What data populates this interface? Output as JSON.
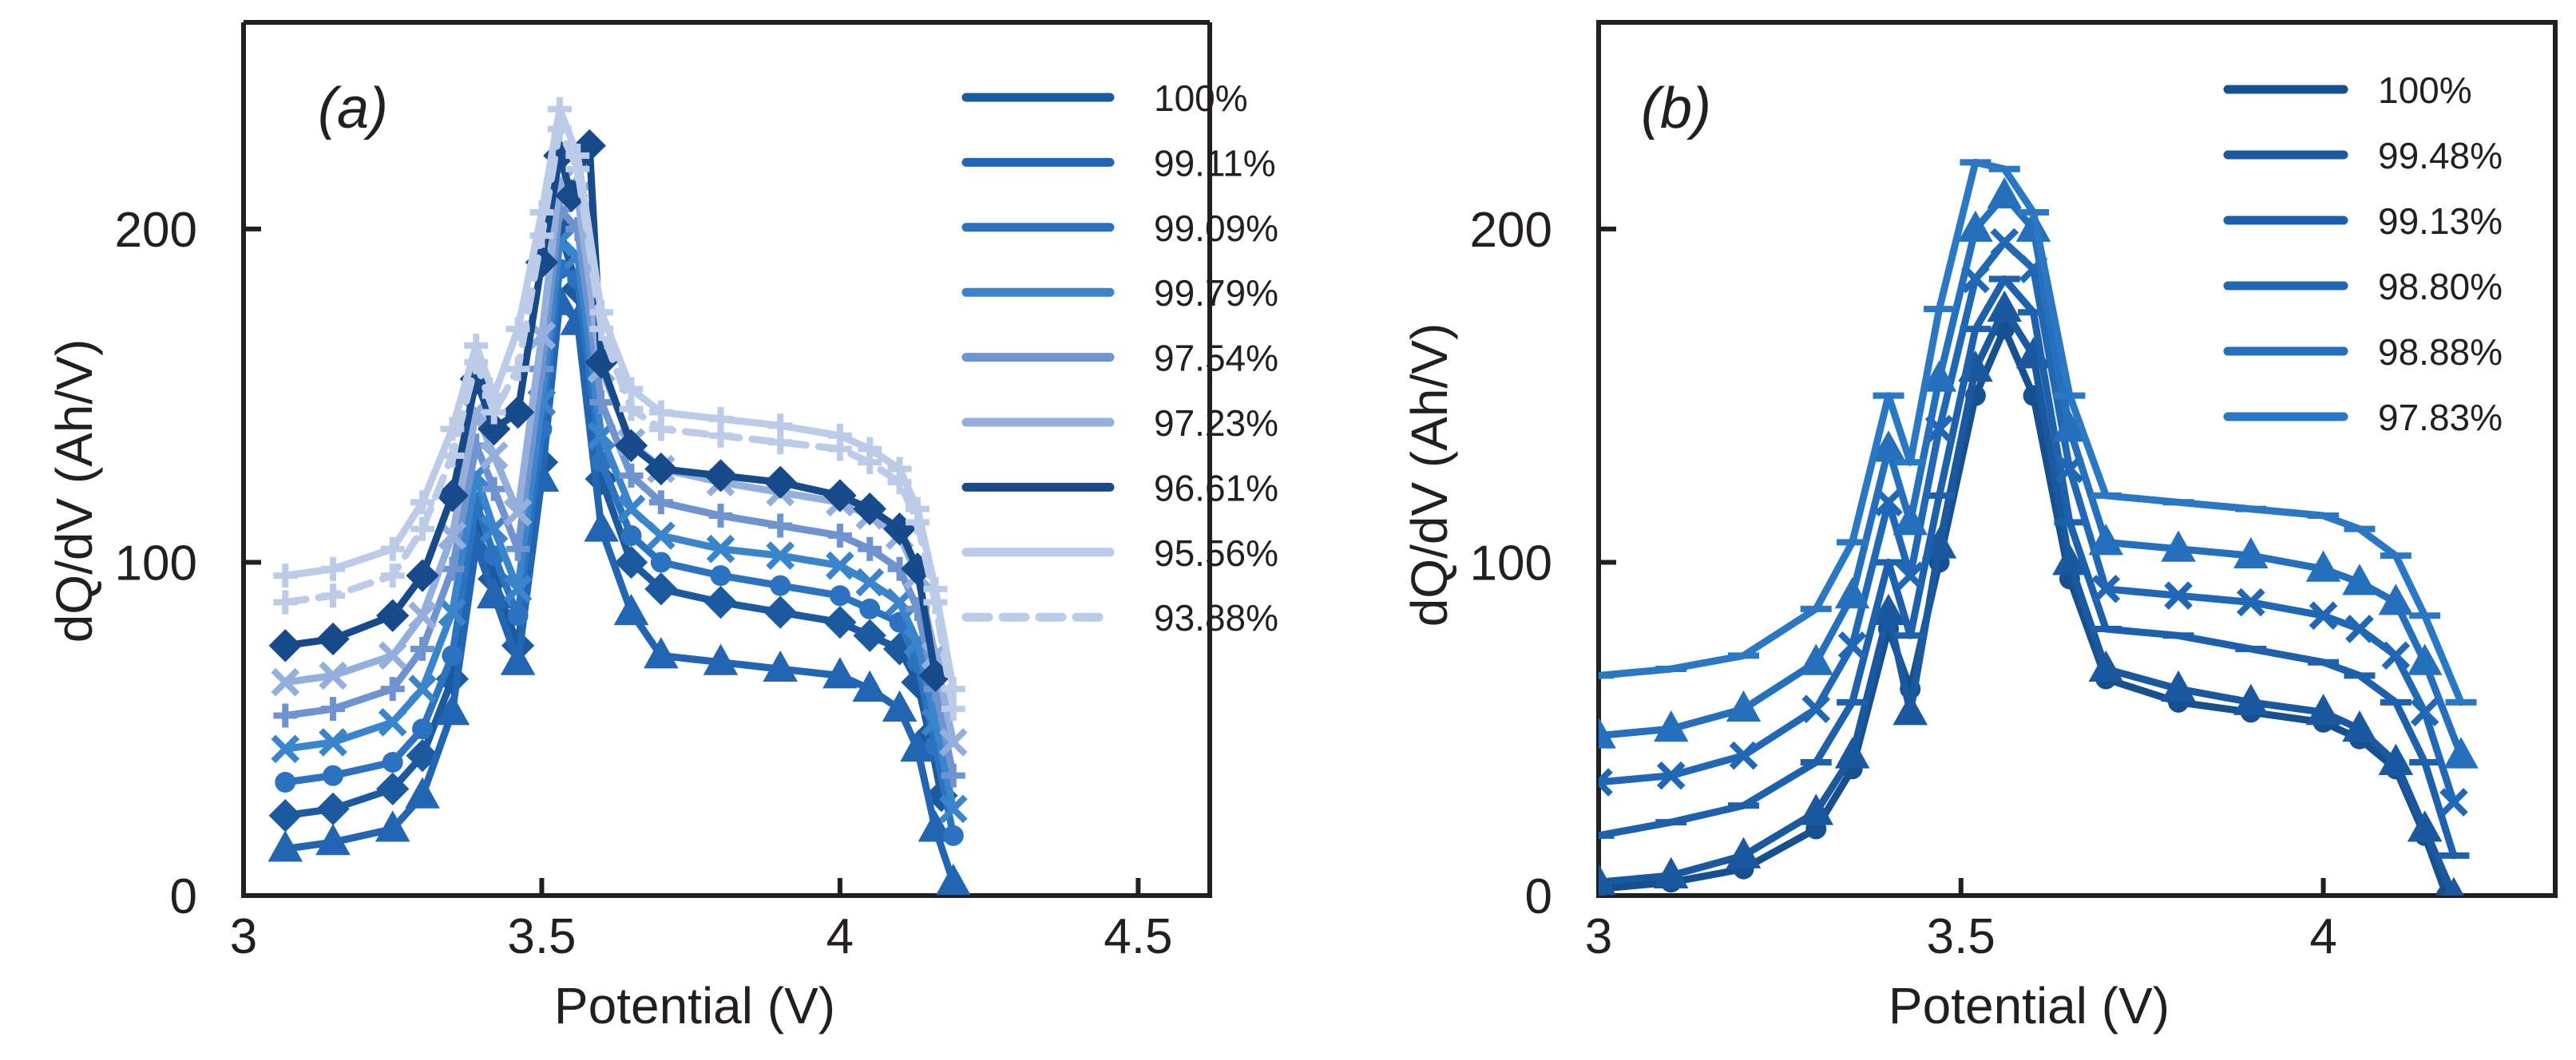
{
  "chart_data": [
    {
      "type": "line",
      "panel_label": "(a)",
      "xlabel": "Potential  (V)",
      "ylabel": "dQ/dV (Ah/V)",
      "xlim": [
        3.0,
        4.62
      ],
      "ylim": [
        0,
        262
      ],
      "xticks": [
        3,
        3.5,
        4,
        4.5
      ],
      "xtick_labels": [
        "3",
        "3.5",
        "4",
        "4.5"
      ],
      "yticks": [
        0,
        100,
        200
      ],
      "ytick_labels": [
        "0",
        "100",
        "200"
      ],
      "legend_position": "top-right",
      "series": [
        {
          "name": "100%",
          "color": "#1c5aa0",
          "dash": false,
          "marker": "diamond",
          "x": [
            3.07,
            3.15,
            3.25,
            3.3,
            3.35,
            3.39,
            3.42,
            3.46,
            3.5,
            3.53,
            3.56,
            3.6,
            3.65,
            3.7,
            3.8,
            3.9,
            4.0,
            4.05,
            4.1,
            4.13,
            4.15,
            4.17
          ],
          "y": [
            24,
            26,
            32,
            42,
            65,
            110,
            95,
            75,
            130,
            200,
            182,
            125,
            100,
            92,
            88,
            85,
            82,
            78,
            74,
            64,
            48,
            30
          ]
        },
        {
          "name": "99.11%",
          "color": "#2266b3",
          "dash": false,
          "marker": "triangle",
          "x": [
            3.07,
            3.15,
            3.25,
            3.3,
            3.35,
            3.39,
            3.42,
            3.46,
            3.5,
            3.53,
            3.56,
            3.6,
            3.65,
            3.7,
            3.8,
            3.9,
            4.0,
            4.05,
            4.1,
            4.13,
            4.16,
            4.19
          ],
          "y": [
            14,
            16,
            20,
            30,
            55,
            105,
            90,
            70,
            125,
            178,
            172,
            110,
            85,
            72,
            70,
            68,
            66,
            62,
            56,
            44,
            20,
            4
          ]
        },
        {
          "name": "99.09%",
          "color": "#2b73c0",
          "dash": false,
          "marker": "circle",
          "x": [
            3.07,
            3.15,
            3.25,
            3.3,
            3.35,
            3.39,
            3.42,
            3.46,
            3.5,
            3.53,
            3.56,
            3.6,
            3.65,
            3.7,
            3.8,
            3.9,
            4.0,
            4.05,
            4.1,
            4.13,
            4.16,
            4.19
          ],
          "y": [
            34,
            36,
            40,
            50,
            72,
            118,
            102,
            84,
            140,
            188,
            185,
            130,
            108,
            100,
            96,
            93,
            90,
            86,
            82,
            70,
            45,
            18
          ]
        },
        {
          "name": "99.79%",
          "color": "#3a84cc",
          "dash": false,
          "marker": "x",
          "x": [
            3.07,
            3.15,
            3.25,
            3.3,
            3.35,
            3.39,
            3.42,
            3.46,
            3.5,
            3.53,
            3.56,
            3.6,
            3.65,
            3.7,
            3.8,
            3.9,
            4.0,
            4.05,
            4.1,
            4.13,
            4.16,
            4.19
          ],
          "y": [
            44,
            46,
            52,
            62,
            85,
            126,
            110,
            92,
            148,
            196,
            192,
            138,
            116,
            108,
            104,
            102,
            99,
            94,
            88,
            76,
            52,
            26
          ]
        },
        {
          "name": "97.54%",
          "color": "#6e93cf",
          "dash": false,
          "marker": "plus",
          "x": [
            3.07,
            3.15,
            3.25,
            3.3,
            3.35,
            3.39,
            3.42,
            3.46,
            3.5,
            3.53,
            3.56,
            3.6,
            3.65,
            3.7,
            3.8,
            3.9,
            4.0,
            4.05,
            4.1,
            4.13,
            4.16,
            4.19
          ],
          "y": [
            54,
            56,
            62,
            74,
            98,
            135,
            122,
            104,
            158,
            206,
            200,
            148,
            126,
            118,
            114,
            111,
            108,
            104,
            98,
            86,
            62,
            36
          ]
        },
        {
          "name": "97.23%",
          "color": "#94afdc",
          "dash": false,
          "marker": "x",
          "x": [
            3.07,
            3.15,
            3.25,
            3.3,
            3.35,
            3.39,
            3.42,
            3.46,
            3.5,
            3.53,
            3.56,
            3.6,
            3.65,
            3.7,
            3.8,
            3.9,
            4.0,
            4.05,
            4.1,
            4.13,
            4.16,
            4.19
          ],
          "y": [
            64,
            66,
            72,
            84,
            108,
            145,
            132,
            115,
            168,
            214,
            210,
            158,
            136,
            128,
            124,
            121,
            118,
            114,
            108,
            96,
            72,
            46
          ]
        },
        {
          "name": "96.61%",
          "color": "#164a8a",
          "dash": false,
          "marker": "diamond",
          "x": [
            3.07,
            3.15,
            3.25,
            3.3,
            3.35,
            3.39,
            3.42,
            3.46,
            3.5,
            3.53,
            3.55,
            3.58,
            3.6,
            3.65,
            3.7,
            3.8,
            3.9,
            4.0,
            4.05,
            4.1,
            4.13,
            4.16
          ],
          "y": [
            75,
            77,
            84,
            96,
            120,
            155,
            140,
            145,
            190,
            222,
            210,
            225,
            160,
            135,
            128,
            126,
            124,
            120,
            116,
            110,
            98,
            66
          ]
        },
        {
          "name": "95.56%",
          "color": "#bccce8",
          "dash": false,
          "marker": "plus",
          "x": [
            3.07,
            3.15,
            3.25,
            3.3,
            3.35,
            3.39,
            3.42,
            3.46,
            3.5,
            3.53,
            3.56,
            3.6,
            3.65,
            3.7,
            3.8,
            3.9,
            4.0,
            4.05,
            4.1,
            4.13,
            4.16,
            4.19
          ],
          "y": [
            96,
            98,
            104,
            118,
            140,
            165,
            150,
            170,
            205,
            236,
            222,
            175,
            152,
            145,
            143,
            141,
            138,
            134,
            128,
            116,
            92,
            62
          ]
        },
        {
          "name": "93.88%",
          "color": "#bccce8",
          "dash": true,
          "marker": "plus",
          "x": [
            3.07,
            3.15,
            3.25,
            3.3,
            3.35,
            3.39,
            3.42,
            3.46,
            3.5,
            3.53,
            3.56,
            3.6,
            3.65,
            3.7,
            3.8,
            3.9,
            4.0,
            4.05,
            4.1,
            4.13,
            4.16,
            4.19
          ],
          "y": [
            88,
            90,
            96,
            110,
            132,
            160,
            145,
            158,
            198,
            230,
            218,
            170,
            146,
            140,
            138,
            136,
            134,
            130,
            124,
            112,
            88,
            56
          ]
        }
      ]
    },
    {
      "type": "line",
      "panel_label": "(b)",
      "xlabel": "Potential  (V)",
      "ylabel": "dQ/dV (Ah/V)",
      "xlim": [
        3.0,
        4.32
      ],
      "ylim": [
        0,
        262
      ],
      "xticks": [
        3,
        3.5,
        4
      ],
      "xtick_labels": [
        "3",
        "3.5",
        "4"
      ],
      "yticks": [
        0,
        100,
        200
      ],
      "ytick_labels": [
        "0",
        "100",
        "200"
      ],
      "legend_position": "top-right",
      "series": [
        {
          "name": "100%",
          "color": "#17508f",
          "dash": false,
          "marker": "circle",
          "x": [
            3.0,
            3.1,
            3.2,
            3.3,
            3.35,
            3.4,
            3.43,
            3.47,
            3.52,
            3.56,
            3.6,
            3.65,
            3.7,
            3.8,
            3.9,
            4.0,
            4.05,
            4.1,
            4.14,
            4.17
          ],
          "y": [
            2,
            4,
            8,
            20,
            38,
            80,
            62,
            100,
            150,
            170,
            150,
            95,
            65,
            58,
            55,
            52,
            47,
            38,
            18,
            0
          ]
        },
        {
          "name": "99.48%",
          "color": "#1a58a0",
          "dash": false,
          "marker": "triangle",
          "x": [
            3.0,
            3.1,
            3.2,
            3.3,
            3.35,
            3.4,
            3.43,
            3.47,
            3.52,
            3.56,
            3.6,
            3.65,
            3.7,
            3.8,
            3.9,
            4.0,
            4.05,
            4.1,
            4.14,
            4.18
          ],
          "y": [
            4,
            6,
            12,
            25,
            42,
            85,
            55,
            105,
            158,
            176,
            162,
            100,
            68,
            62,
            58,
            55,
            50,
            40,
            20,
            0
          ]
        },
        {
          "name": "99.13%",
          "color": "#1d61ad",
          "dash": false,
          "marker": "minus",
          "x": [
            3.0,
            3.1,
            3.2,
            3.3,
            3.35,
            3.4,
            3.43,
            3.47,
            3.52,
            3.56,
            3.6,
            3.65,
            3.7,
            3.8,
            3.9,
            4.0,
            4.05,
            4.1,
            4.14,
            4.18
          ],
          "y": [
            18,
            22,
            27,
            40,
            58,
            100,
            78,
            120,
            170,
            185,
            175,
            112,
            80,
            78,
            74,
            70,
            66,
            58,
            40,
            12
          ]
        },
        {
          "name": "98.80%",
          "color": "#2068b5",
          "dash": false,
          "marker": "x",
          "x": [
            3.0,
            3.1,
            3.2,
            3.3,
            3.35,
            3.4,
            3.43,
            3.47,
            3.52,
            3.56,
            3.6,
            3.65,
            3.7,
            3.8,
            3.9,
            4.0,
            4.05,
            4.1,
            4.14,
            4.18
          ],
          "y": [
            34,
            36,
            42,
            56,
            75,
            118,
            96,
            140,
            185,
            196,
            188,
            128,
            92,
            90,
            88,
            84,
            80,
            72,
            55,
            28
          ]
        },
        {
          "name": "98.88%",
          "color": "#2470bd",
          "dash": false,
          "marker": "triangle",
          "x": [
            3.0,
            3.1,
            3.2,
            3.3,
            3.35,
            3.4,
            3.43,
            3.47,
            3.52,
            3.56,
            3.6,
            3.65,
            3.7,
            3.8,
            3.9,
            4.0,
            4.05,
            4.1,
            4.14,
            4.19
          ],
          "y": [
            48,
            50,
            56,
            70,
            90,
            134,
            112,
            155,
            200,
            210,
            200,
            140,
            106,
            104,
            102,
            98,
            94,
            88,
            70,
            42
          ]
        },
        {
          "name": "97.83%",
          "color": "#2a78c4",
          "dash": false,
          "marker": "minus",
          "x": [
            3.0,
            3.1,
            3.2,
            3.3,
            3.35,
            3.4,
            3.43,
            3.47,
            3.52,
            3.56,
            3.6,
            3.65,
            3.7,
            3.8,
            3.9,
            4.0,
            4.05,
            4.1,
            4.14,
            4.19
          ],
          "y": [
            66,
            68,
            72,
            86,
            106,
            150,
            130,
            176,
            220,
            218,
            205,
            150,
            120,
            118,
            116,
            114,
            110,
            102,
            84,
            58
          ]
        }
      ]
    }
  ]
}
